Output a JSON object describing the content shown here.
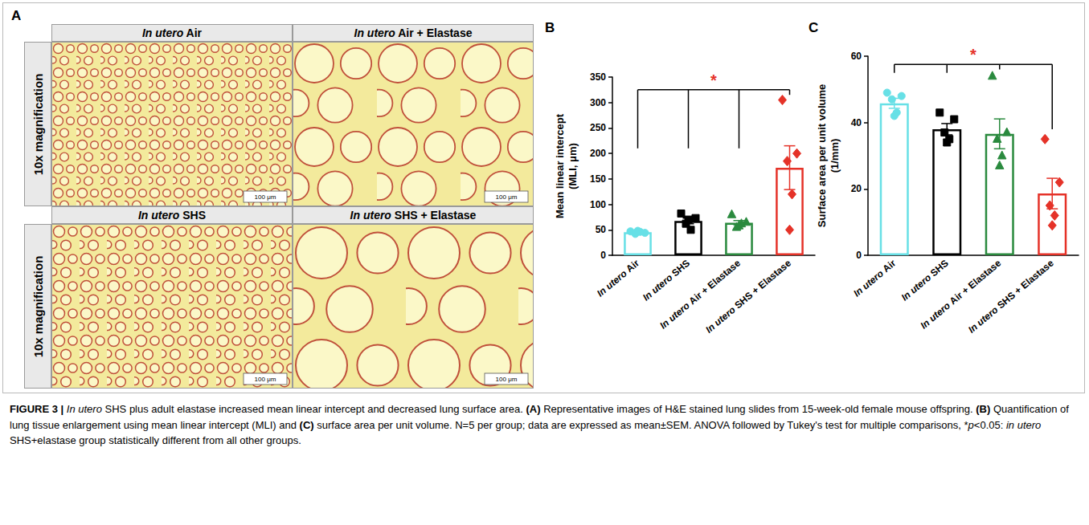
{
  "figure": {
    "panel_a": {
      "label": "A",
      "row_labels": [
        "10x magnification",
        "10x magnification"
      ],
      "cells": [
        [
          "In utero Air",
          "In utero Air + Elastase"
        ],
        [
          "In utero SHS",
          "In utero SHS + Elastase"
        ]
      ],
      "scale_bar": "100 μm"
    },
    "caption": {
      "label": "FIGURE 3 |",
      "text": "In utero SHS plus adult elastase increased mean linear intercept and decreased lung surface area. (A) Representative images of H&E stained lung slides from 15-week-old female mouse offspring. (B) Quantification of lung tissue enlargement using mean linear intercept (MLI) and (C) surface area per unit volume. N=5 per group; data are expressed as mean±SEM. ANOVA followed by Tukey's test for multiple comparisons, *p<0.05: in utero SHS+elastase group statistically different from all other groups."
    }
  },
  "chart_data": [
    {
      "type": "bar",
      "panel": "B",
      "ylabel": "Mean linear intercept (MLI, μm)",
      "categories": [
        "In utero Air",
        "In utero SHS",
        "In utero Air + Elastase",
        "In utero SHS + Elastase"
      ],
      "values": [
        45.4,
        67.4,
        64,
        172
      ],
      "errors": [
        1.1,
        5.6,
        4.2,
        43
      ],
      "colors": [
        "#67e0e6",
        "#000000",
        "#2a8a3e",
        "#e53228"
      ],
      "points": [
        {
          "marker": "circle",
          "values": [
            47,
            44,
            42,
            46,
            48
          ]
        },
        {
          "marker": "square",
          "values": [
            82,
            73,
            62,
            50,
            70
          ]
        },
        {
          "marker": "triangle",
          "values": [
            80,
            65,
            55,
            62,
            58
          ]
        },
        {
          "marker": "diamond",
          "values": [
            305,
            200,
            185,
            120,
            50
          ]
        }
      ],
      "significance": {
        "label": "*",
        "y": 325,
        "ends": [
          210,
          210,
          210,
          315
        ],
        "color": "#e53228"
      },
      "ylim": [
        0,
        350
      ],
      "yticks": [
        0,
        50,
        100,
        150,
        200,
        250,
        300,
        350
      ],
      "grid": false
    },
    {
      "type": "bar",
      "panel": "C",
      "ylabel": "Surface area per unit volume (1/mm)",
      "categories": [
        "In utero Air",
        "In utero SHS",
        "In utero Air + Elastase",
        "In utero SHS + Elastase"
      ],
      "values": [
        45.8,
        38,
        36.6,
        18.6
      ],
      "errors": [
        1.5,
        1.7,
        4.5,
        4.6
      ],
      "colors": [
        "#67e0e6",
        "#000000",
        "#2a8a3e",
        "#e53228"
      ],
      "points": [
        {
          "marker": "circle",
          "values": [
            49,
            48,
            47,
            43,
            42
          ]
        },
        {
          "marker": "square",
          "values": [
            43,
            41,
            37,
            35,
            34
          ]
        },
        {
          "marker": "triangle",
          "values": [
            54,
            37,
            35,
            30,
            27
          ]
        },
        {
          "marker": "diamond",
          "values": [
            35,
            22,
            15,
            12,
            9
          ]
        }
      ],
      "significance": {
        "label": "*",
        "y": 57.5,
        "ends": [
          55,
          55,
          56,
          38
        ],
        "color": "#e53228"
      },
      "ylim": [
        0,
        60
      ],
      "yticks": [
        0,
        20,
        40,
        60
      ],
      "grid": false
    }
  ]
}
